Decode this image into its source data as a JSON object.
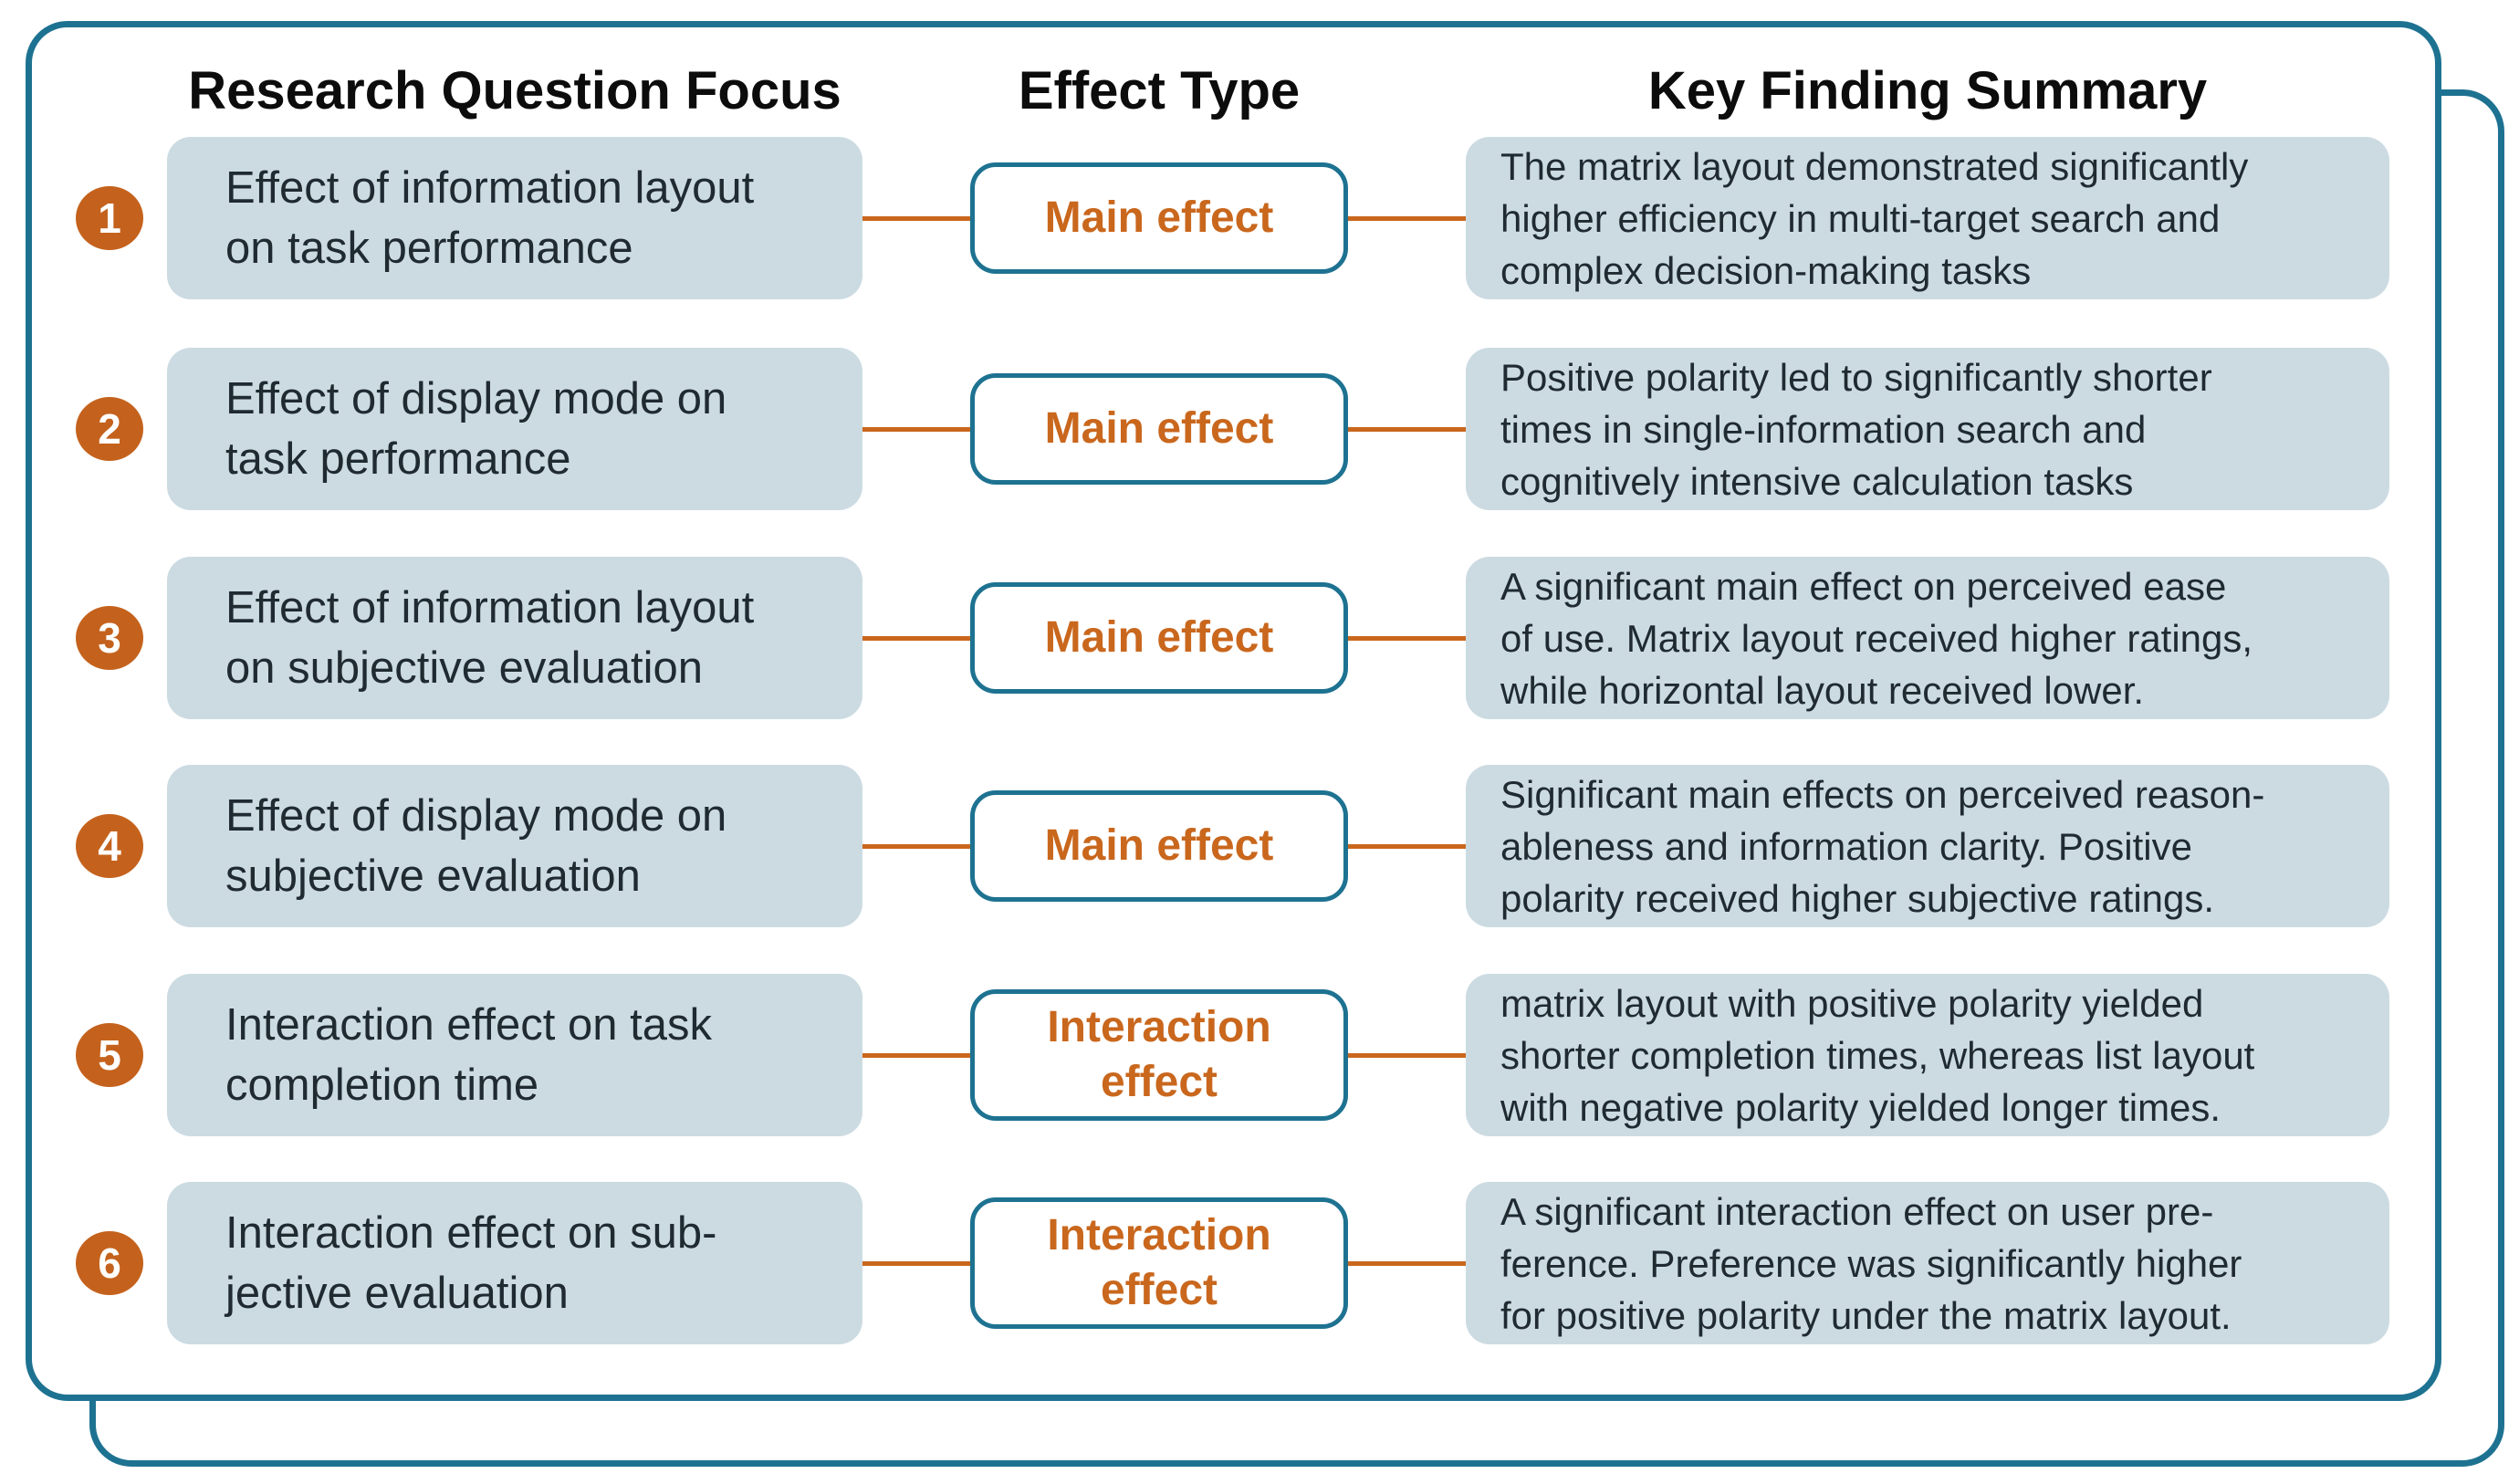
{
  "colors": {
    "teal": "#1e7291",
    "orange": "#c4621d",
    "orange-text": "#c9671d",
    "box-fill": "#ccdbe2",
    "body-text": "#1f2a31",
    "header-text": "#0c0c0c"
  },
  "headers": {
    "question": "Research Question Focus",
    "effect": "Effect Type",
    "finding": "Key Finding Summary"
  },
  "rows": [
    {
      "number": "1",
      "question": "Effect of information layout\non task performance",
      "effect": "Main effect",
      "finding": "The matrix layout demonstrated significantly\nhigher efficiency in multi-target search and\ncomplex decision-making tasks"
    },
    {
      "number": "2",
      "question": "Effect of display mode on\ntask performance",
      "effect": "Main effect",
      "finding": "Positive polarity led to significantly shorter\ntimes in single-information search and\ncognitively intensive calculation tasks"
    },
    {
      "number": "3",
      "question": "Effect of information layout\non subjective evaluation",
      "effect": "Main effect",
      "finding": "A significant main effect on perceived ease\nof use. Matrix layout received higher ratings,\nwhile horizontal layout received lower."
    },
    {
      "number": "4",
      "question": "Effect of display mode on\nsubjective evaluation",
      "effect": "Main effect",
      "finding": "Significant main effects on perceived reason-\nableness and information clarity. Positive\npolarity received higher subjective ratings."
    },
    {
      "number": "5",
      "question": "Interaction effect on task\ncompletion time",
      "effect": "Interaction\neffect",
      "finding": "matrix layout with positive polarity yielded\nshorter completion times, whereas list layout\nwith negative polarity yielded longer times."
    },
    {
      "number": "6",
      "question": "Interaction effect on sub-\njective evaluation",
      "effect": "Interaction\neffect",
      "finding": "A significant interaction effect on user pre-\nference. Preference was significantly higher\nfor positive polarity under the matrix layout."
    }
  ]
}
